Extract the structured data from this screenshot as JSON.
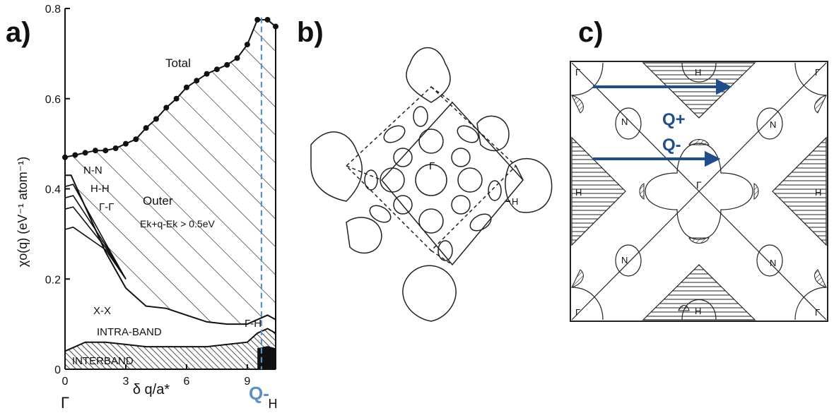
{
  "panels": {
    "a": {
      "label": "a)",
      "chart_data": {
        "type": "line",
        "xlim": [
          0,
          10.4
        ],
        "ylim": [
          0,
          0.8
        ],
        "x_ticks": [
          "0",
          "3",
          "6",
          "9"
        ],
        "y_ticks": [
          "0",
          "0.2",
          "0.4",
          "0.6",
          "0.8"
        ],
        "xlabel": "δ q/a*",
        "ylabel": "χo(q) (eV⁻¹ atom⁻¹)",
        "x_endpoint_labels": [
          "Γ",
          "H"
        ],
        "series": [
          {
            "name": "Total",
            "x": [
              0,
              0.5,
              1,
              1.5,
              2,
              2.5,
              3,
              3.5,
              4,
              4.5,
              5,
              5.5,
              6,
              6.5,
              7,
              7.5,
              8,
              8.5,
              9,
              9.5,
              10,
              10.4
            ],
            "y": [
              0.47,
              0.475,
              0.48,
              0.485,
              0.485,
              0.49,
              0.5,
              0.51,
              0.535,
              0.555,
              0.58,
              0.6,
              0.625,
              0.64,
              0.655,
              0.665,
              0.675,
              0.69,
              0.72,
              0.775,
              0.775,
              0.76
            ]
          },
          {
            "name": "X-X",
            "x": [
              0,
              0.3,
              1,
              2,
              3,
              4,
              5,
              6,
              7,
              8,
              9,
              9.5,
              10,
              10.4
            ],
            "y": [
              0.43,
              0.43,
              0.36,
              0.26,
              0.18,
              0.14,
              0.135,
              0.12,
              0.105,
              0.1,
              0.1,
              0.11,
              0.12,
              0.11
            ]
          },
          {
            "name": "INTRA-BAND",
            "x": [
              0,
              1,
              2,
              3,
              4,
              5,
              6,
              7,
              8,
              9,
              9.5,
              10,
              10.4
            ],
            "y": [
              0.04,
              0.06,
              0.06,
              0.055,
              0.05,
              0.05,
              0.05,
              0.05,
              0.055,
              0.06,
              0.08,
              0.09,
              0.08
            ]
          },
          {
            "name": "Γ-H",
            "x": [
              9.5,
              10,
              10.4
            ],
            "y": [
              0.045,
              0.05,
              0.045
            ]
          }
        ],
        "annotations": [
          "Total",
          "N-N",
          "H-H",
          "Γ-Γ",
          "Outer",
          "Ek+q-Ek > 0.5eV",
          "X-X",
          "INTRA-BAND",
          "INTERBAND",
          "Γ-H"
        ],
        "marker_label": "Q-",
        "marker_x": 9.7
      }
    },
    "b": {
      "label": "b)",
      "point_labels": [
        "Γ",
        "H"
      ]
    },
    "c": {
      "label": "c)",
      "corner_label": "Γ",
      "H_label": "H",
      "N_label": "N",
      "center_label": "Γ",
      "arrow_plus": "Q+",
      "arrow_minus": "Q-",
      "arrow_color": "#1f4e8c"
    }
  }
}
